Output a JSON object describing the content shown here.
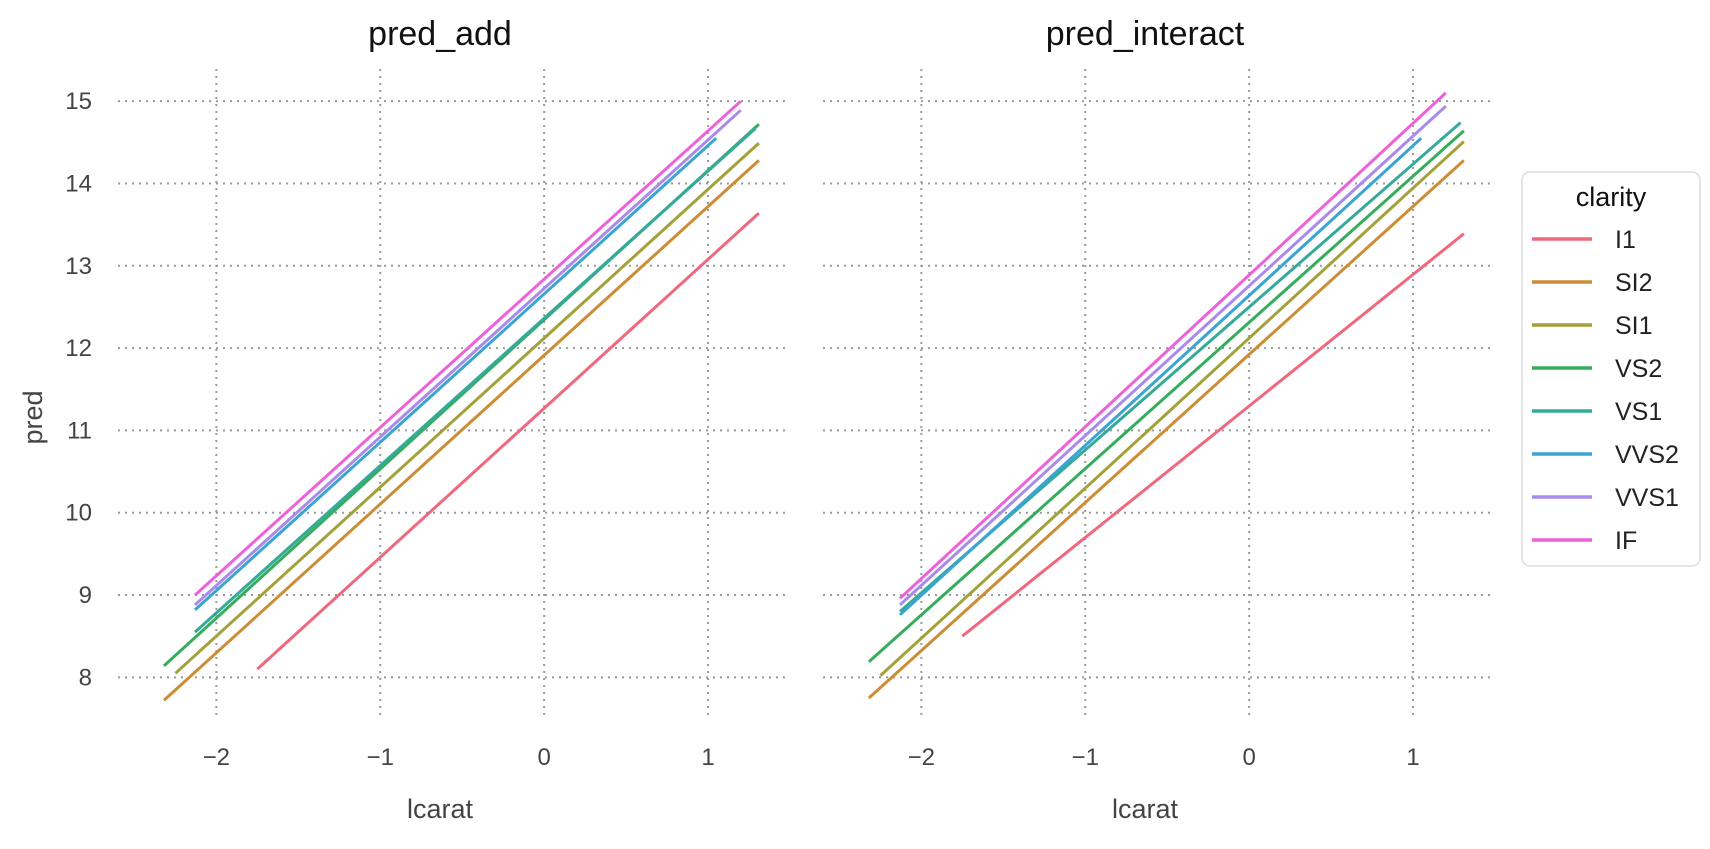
{
  "chart_data": [
    {
      "type": "line",
      "title": "pred_add",
      "xlabel": "lcarat",
      "ylabel": "pred",
      "xlim": [
        -2.6,
        1.5
      ],
      "ylim": [
        7.3,
        15.5
      ],
      "xticks": [
        -2,
        -1,
        0,
        1
      ],
      "yticks": [
        8,
        9,
        10,
        11,
        12,
        13,
        14,
        15
      ],
      "grid": true,
      "series": [
        {
          "name": "I1",
          "x": [
            -1.75,
            1.31
          ],
          "y": [
            8.1,
            13.64
          ]
        },
        {
          "name": "SI2",
          "x": [
            -2.32,
            1.31
          ],
          "y": [
            7.72,
            14.28
          ]
        },
        {
          "name": "SI1",
          "x": [
            -2.25,
            1.31
          ],
          "y": [
            8.05,
            14.49
          ]
        },
        {
          "name": "VS2",
          "x": [
            -2.32,
            1.31
          ],
          "y": [
            8.14,
            14.72
          ]
        },
        {
          "name": "VS1",
          "x": [
            -2.13,
            1.29
          ],
          "y": [
            8.55,
            14.67
          ]
        },
        {
          "name": "VVS2",
          "x": [
            -2.13,
            1.05
          ],
          "y": [
            8.82,
            14.55
          ]
        },
        {
          "name": "VVS1",
          "x": [
            -2.13,
            1.2
          ],
          "y": [
            8.88,
            14.89
          ]
        },
        {
          "name": "IF",
          "x": [
            -2.13,
            1.2
          ],
          "y": [
            9.0,
            15.0
          ]
        }
      ]
    },
    {
      "type": "line",
      "title": "pred_interact",
      "xlabel": "lcarat",
      "ylabel": "",
      "xlim": [
        -2.6,
        1.5
      ],
      "ylim": [
        7.3,
        15.5
      ],
      "xticks": [
        -2,
        -1,
        0,
        1
      ],
      "yticks": [
        8,
        9,
        10,
        11,
        12,
        13,
        14,
        15
      ],
      "grid": true,
      "series": [
        {
          "name": "I1",
          "x": [
            -1.75,
            1.31
          ],
          "y": [
            8.5,
            13.39
          ]
        },
        {
          "name": "SI2",
          "x": [
            -2.32,
            1.31
          ],
          "y": [
            7.75,
            14.28
          ]
        },
        {
          "name": "SI1",
          "x": [
            -2.25,
            1.31
          ],
          "y": [
            8.02,
            14.51
          ]
        },
        {
          "name": "VS2",
          "x": [
            -2.32,
            1.31
          ],
          "y": [
            8.19,
            14.64
          ]
        },
        {
          "name": "VS1",
          "x": [
            -2.13,
            1.29
          ],
          "y": [
            8.8,
            14.74
          ]
        },
        {
          "name": "VVS2",
          "x": [
            -2.13,
            1.05
          ],
          "y": [
            8.76,
            14.55
          ]
        },
        {
          "name": "VVS1",
          "x": [
            -2.13,
            1.2
          ],
          "y": [
            8.88,
            14.94
          ]
        },
        {
          "name": "IF",
          "x": [
            -2.13,
            1.2
          ],
          "y": [
            8.96,
            15.1
          ]
        }
      ]
    }
  ],
  "legend": {
    "title": "clarity",
    "placement": "right",
    "items": [
      {
        "label": "I1",
        "color": "#f0687d"
      },
      {
        "label": "SI2",
        "color": "#cc8d36"
      },
      {
        "label": "SI1",
        "color": "#a3a23a"
      },
      {
        "label": "VS2",
        "color": "#36ad5c"
      },
      {
        "label": "VS1",
        "color": "#36aa9a"
      },
      {
        "label": "VVS2",
        "color": "#3aa4d2"
      },
      {
        "label": "VVS1",
        "color": "#a88bea"
      },
      {
        "label": "IF",
        "color": "#ed62d8"
      }
    ]
  }
}
